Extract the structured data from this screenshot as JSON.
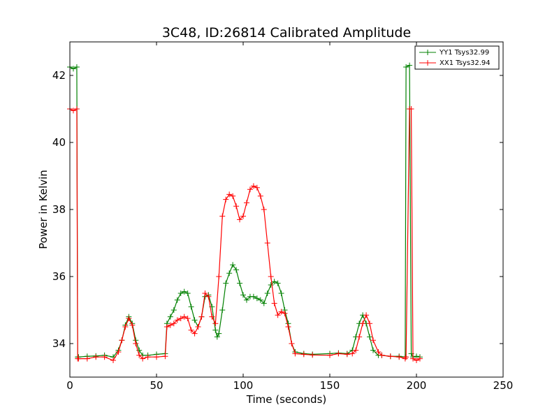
{
  "chart_data": {
    "type": "line",
    "title": "3C48, ID:26814 Calibrated Amplitude",
    "xlabel": "Time (seconds)",
    "ylabel": "Power in Kelvin",
    "xlim": [
      0,
      250
    ],
    "ylim": [
      33,
      43
    ],
    "xticks": [
      0,
      50,
      100,
      150,
      200,
      250
    ],
    "yticks": [
      34,
      36,
      38,
      40,
      42
    ],
    "grid": false,
    "legend_position": "top-right",
    "marker": "+",
    "series": [
      {
        "name": "YY1 Tsys32.99",
        "color": "#008000",
        "x": [
          0,
          2,
          4,
          4.5,
          5,
          10,
          15,
          20,
          25,
          28,
          30,
          32,
          34,
          36,
          38,
          40,
          42,
          45,
          50,
          55,
          56,
          58,
          60,
          62,
          64,
          66,
          68,
          70,
          72,
          74,
          76,
          78,
          80,
          82,
          84,
          85,
          86,
          88,
          90,
          92,
          94,
          96,
          98,
          100,
          102,
          104,
          106,
          108,
          110,
          112,
          114,
          116,
          118,
          120,
          122,
          124,
          126,
          128,
          130,
          135,
          140,
          150,
          155,
          160,
          163,
          165,
          167,
          169,
          171,
          173,
          175,
          178,
          180,
          185,
          190,
          193.5,
          194,
          196,
          197,
          198,
          200,
          202
        ],
        "values": [
          42.25,
          42.2,
          42.25,
          33.6,
          33.6,
          33.62,
          33.63,
          33.65,
          33.6,
          33.8,
          34.1,
          34.55,
          34.8,
          34.6,
          34.1,
          33.8,
          33.65,
          33.65,
          33.68,
          33.7,
          34.6,
          34.8,
          35.0,
          35.3,
          35.5,
          35.55,
          35.5,
          35.1,
          34.7,
          34.5,
          34.8,
          35.4,
          35.45,
          35.1,
          34.4,
          34.2,
          34.3,
          35.0,
          35.8,
          36.1,
          36.35,
          36.2,
          35.8,
          35.45,
          35.3,
          35.4,
          35.4,
          35.35,
          35.3,
          35.2,
          35.5,
          35.75,
          35.85,
          35.8,
          35.5,
          35.0,
          34.6,
          34.0,
          33.75,
          33.7,
          33.68,
          33.7,
          33.72,
          33.7,
          33.8,
          34.2,
          34.6,
          34.85,
          34.6,
          34.2,
          33.8,
          33.65,
          33.65,
          33.62,
          33.62,
          33.6,
          42.25,
          42.3,
          33.7,
          33.6,
          33.62,
          33.6
        ]
      },
      {
        "name": "XX1 Tsys32.94",
        "color": "#ff0000",
        "x": [
          0,
          2,
          4,
          4.5,
          5,
          10,
          15,
          20,
          25,
          28,
          30,
          32,
          34,
          36,
          38,
          40,
          42,
          45,
          50,
          55,
          56,
          58,
          60,
          62,
          64,
          66,
          68,
          70,
          72,
          74,
          76,
          78,
          80,
          82,
          84,
          86,
          88,
          90,
          92,
          94,
          96,
          98,
          100,
          102,
          104,
          106,
          108,
          110,
          112,
          114,
          116,
          118,
          120,
          122,
          124,
          126,
          128,
          130,
          135,
          140,
          150,
          155,
          160,
          163,
          165,
          167,
          169,
          171,
          173,
          175,
          178,
          180,
          185,
          190,
          193.5,
          194,
          196,
          197,
          198,
          200,
          202
        ],
        "values": [
          41.0,
          40.95,
          41.0,
          33.55,
          33.55,
          33.55,
          33.6,
          33.6,
          33.5,
          33.75,
          34.1,
          34.5,
          34.75,
          34.55,
          34.0,
          33.65,
          33.55,
          33.6,
          33.6,
          33.62,
          34.5,
          34.55,
          34.6,
          34.7,
          34.75,
          34.8,
          34.75,
          34.4,
          34.3,
          34.5,
          34.8,
          35.5,
          35.4,
          34.8,
          34.6,
          36.0,
          37.8,
          38.3,
          38.45,
          38.4,
          38.1,
          37.7,
          37.8,
          38.2,
          38.6,
          38.7,
          38.65,
          38.4,
          38.0,
          37.0,
          36.0,
          35.2,
          34.85,
          34.95,
          34.9,
          34.5,
          34.0,
          33.7,
          33.68,
          33.66,
          33.65,
          33.7,
          33.68,
          33.7,
          33.8,
          34.2,
          34.6,
          34.85,
          34.6,
          34.1,
          33.75,
          33.65,
          33.62,
          33.6,
          33.55,
          33.6,
          41.0,
          41.0,
          33.55,
          33.5,
          33.55
        ]
      }
    ]
  }
}
